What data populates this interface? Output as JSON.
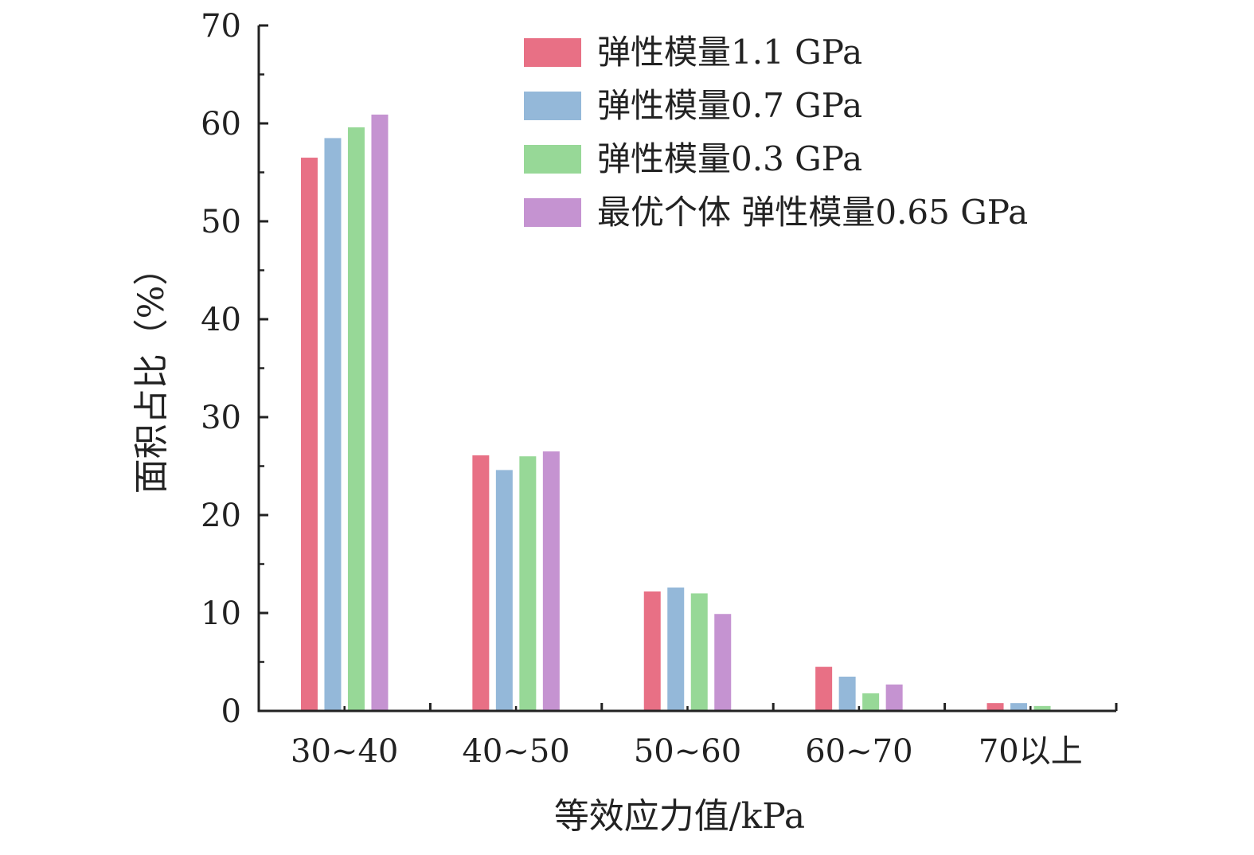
{
  "chart_data": {
    "type": "bar",
    "title": "",
    "xlabel": "等效应力值/kPa",
    "ylabel": "面积占比（%）",
    "ylim": [
      0,
      70
    ],
    "yticks": [
      0,
      10,
      20,
      30,
      40,
      50,
      60,
      70
    ],
    "categories": [
      "30~40",
      "40~50",
      "50~60",
      "60~70",
      "70以上"
    ],
    "legend_position": "top-right",
    "grid": false,
    "series": [
      {
        "name": "弹性模量1.1 GPa",
        "color": "#E87085",
        "values": [
          56.5,
          26.1,
          12.2,
          4.5,
          0.8
        ]
      },
      {
        "name": "弹性模量0.7 GPa",
        "color": "#94B8D9",
        "values": [
          58.5,
          24.6,
          12.6,
          3.5,
          0.8
        ]
      },
      {
        "name": "弹性模量0.3 GPa",
        "color": "#97D897",
        "values": [
          59.6,
          26.0,
          12.0,
          1.8,
          0.5
        ]
      },
      {
        "name": "最优个体 弹性模量0.65 GPa",
        "color": "#C593D1",
        "values": [
          60.9,
          26.5,
          9.9,
          2.7,
          0
        ]
      }
    ]
  }
}
